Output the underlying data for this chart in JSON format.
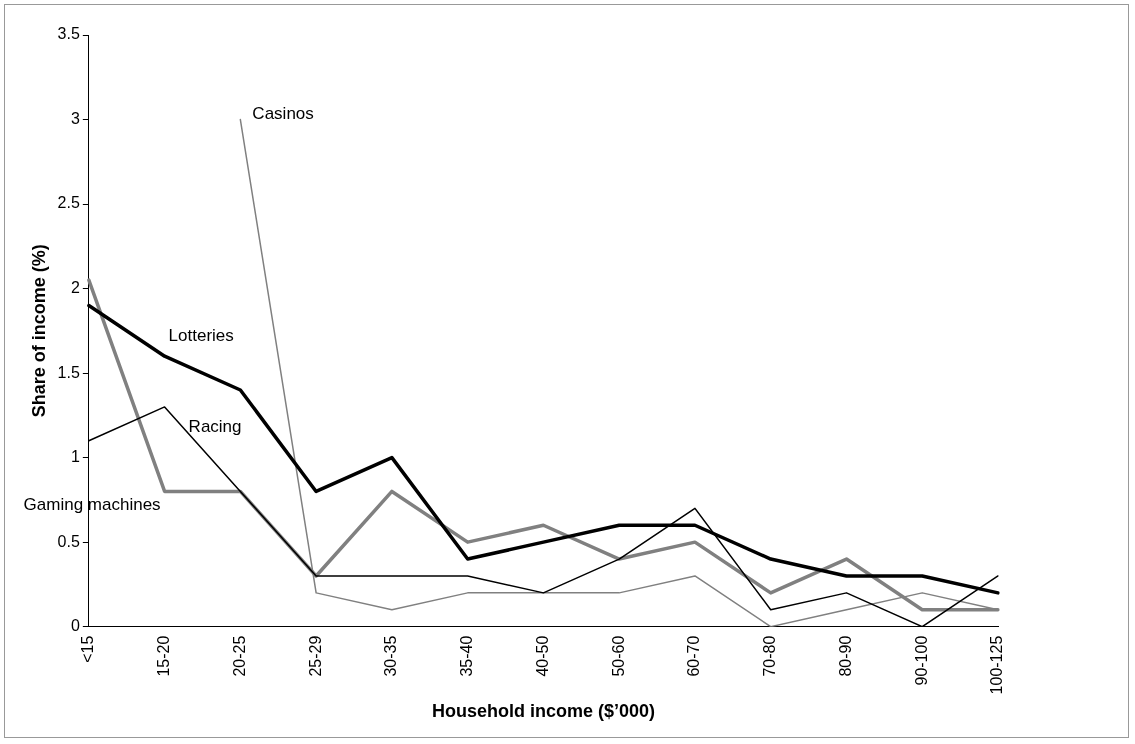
{
  "chart_data": {
    "type": "line",
    "xlabel": "Household income ($’000)",
    "ylabel": "Share of income (%)",
    "categories": [
      "<15",
      "15-20",
      "20-25",
      "25-29",
      "30-35",
      "35-40",
      "40-50",
      "50-60",
      "60-70",
      "70-80",
      "80-90",
      "90-100",
      "100-125"
    ],
    "series": [
      {
        "name": "Lotteries",
        "color": "#000000",
        "values": [
          1.9,
          1.6,
          1.4,
          0.8,
          1.0,
          0.4,
          0.5,
          0.6,
          0.6,
          0.4,
          0.3,
          0.3,
          0.2
        ]
      },
      {
        "name": "Racing",
        "color": "#000000",
        "values": [
          1.1,
          1.3,
          0.8,
          0.3,
          0.3,
          0.3,
          0.2,
          0.4,
          0.7,
          0.1,
          0.2,
          0.0,
          0.3
        ]
      },
      {
        "name": "Gaming machines",
        "color": "#808080",
        "values": [
          2.05,
          0.8,
          0.8,
          0.3,
          0.8,
          0.5,
          0.6,
          0.4,
          0.5,
          0.2,
          0.4,
          0.1,
          0.1
        ]
      },
      {
        "name": "Casinos",
        "color": "#808080",
        "values": [
          null,
          null,
          3.0,
          0.2,
          0.1,
          0.2,
          0.2,
          0.2,
          0.3,
          0.0,
          0.1,
          0.2,
          0.1
        ]
      }
    ],
    "ylim": [
      0,
      3.5
    ],
    "yticks": [
      0,
      0.5,
      1,
      1.5,
      2,
      2.5,
      3,
      3.5
    ],
    "grid": false,
    "legend": false,
    "marker": "none",
    "line_style": "solid"
  }
}
